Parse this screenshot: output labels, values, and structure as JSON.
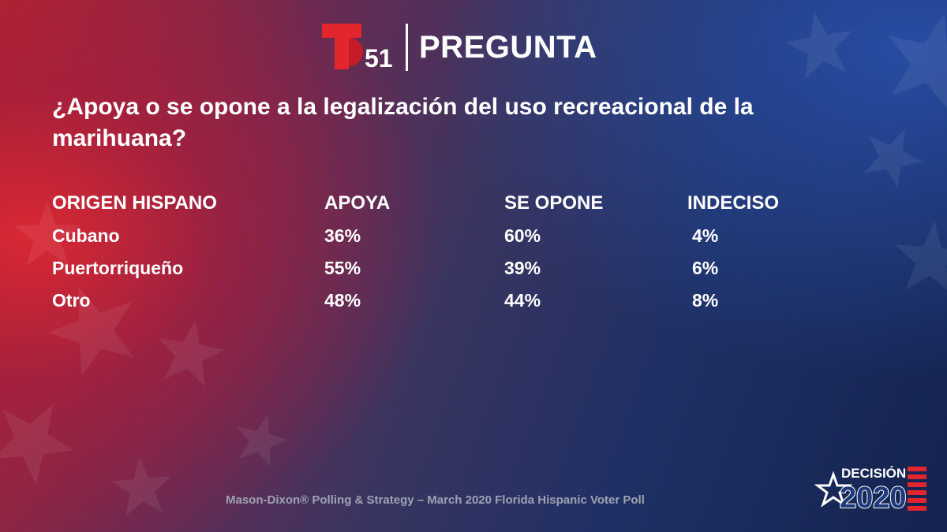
{
  "brand": {
    "channel_number": "51",
    "section_title": "PREGUNTA"
  },
  "question": "¿Apoya o se opone a la legalización del uso recreacional de la marihuana?",
  "table": {
    "columns": [
      "ORIGEN HISPANO",
      "APOYA",
      "SE OPONE",
      "INDECISO"
    ],
    "rows": [
      [
        "Cubano",
        "36%",
        "60%",
        "4%"
      ],
      [
        "Puertorriqueño",
        "55%",
        "39%",
        "6%"
      ],
      [
        "Otro",
        "48%",
        "44%",
        "8%"
      ]
    ]
  },
  "footer": {
    "source": "Mason-Dixon® Polling & Strategy – March 2020 Florida Hispanic Voter Poll"
  },
  "badge": {
    "line1": "DECISIÓN",
    "line2": "2020"
  },
  "colors": {
    "telemundo_red": "#e3262d",
    "text": "#ffffff",
    "footer_text": "#9da2b3",
    "badge_blue": "#1f3a7a"
  },
  "icons": {
    "logo": "telemundo-t-logo",
    "badge_star": "star-icon",
    "badge_flag": "flag-stripes-icon"
  }
}
